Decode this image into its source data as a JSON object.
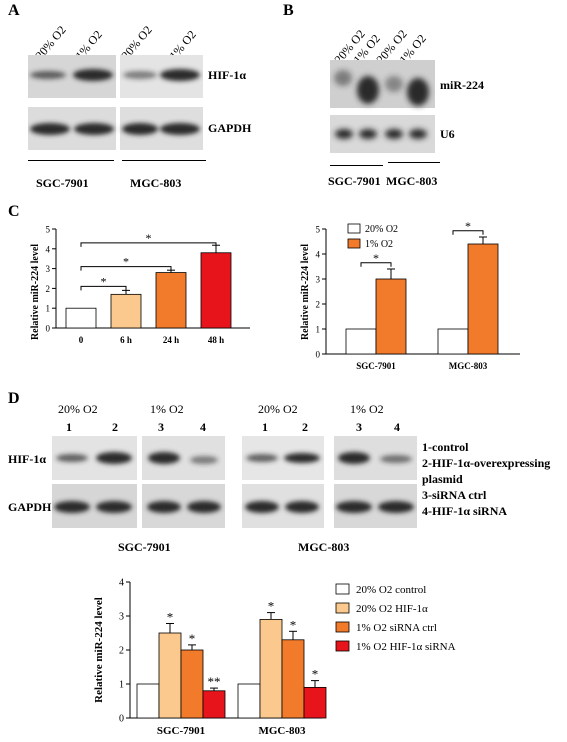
{
  "panels": {
    "A": "A",
    "B": "B",
    "C": "C",
    "D": "D"
  },
  "panelA": {
    "lanes": [
      "20% O2",
      "1% O2",
      "20% O2",
      "1% O2"
    ],
    "rows": [
      "HIF-1α",
      "GAPDH"
    ],
    "cells": [
      "SGC-7901",
      "MGC-803"
    ]
  },
  "panelB": {
    "lanes": [
      "20% O2",
      "1% O2",
      "20% O2",
      "1% O2"
    ],
    "rows": [
      "miR-224",
      "U6"
    ],
    "cells": [
      "SGC-7901",
      "MGC-803"
    ]
  },
  "panelD_blot": {
    "groups": [
      "20% O2",
      "1% O2",
      "20% O2",
      "1% O2"
    ],
    "lane_numbers": [
      "1",
      "2",
      "3",
      "4",
      "1",
      "2",
      "3",
      "4"
    ],
    "rows": [
      "HIF-1α",
      "GAPDH"
    ],
    "legend": [
      "1-control",
      "2-HIF-1α-overexpressing",
      "plasmid",
      "3-siRNA ctrl",
      "4-HIF-1α siRNA"
    ],
    "cells": [
      "SGC-7901",
      "MGC-803"
    ]
  },
  "chart_data": [
    {
      "type": "bar",
      "ylabel": "Relative miR-224 level",
      "ylim": [
        0,
        5
      ],
      "yticks": [
        "0",
        "1",
        "2",
        "3",
        "4",
        "5"
      ],
      "categories": [
        "0",
        "6 h",
        "24 h",
        "48 h"
      ],
      "values": [
        1.0,
        1.7,
        2.8,
        3.8
      ],
      "errors": [
        0,
        0.2,
        0.12,
        0.38
      ],
      "colors": [
        "#ffffff",
        "#fbc98e",
        "#f27a2b",
        "#e8141c"
      ],
      "sig": [
        "*",
        "*",
        "*"
      ]
    },
    {
      "type": "bar",
      "ylabel": "Relative miR-224 level",
      "ylim": [
        0,
        5
      ],
      "yticks": [
        "0",
        "1",
        "2",
        "3",
        "4",
        "5"
      ],
      "categories": [
        "SGC-7901",
        "MGC-803"
      ],
      "series": [
        {
          "name": "20% O2",
          "values": [
            1.0,
            1.0
          ],
          "errors": [
            0,
            0
          ],
          "color": "#ffffff"
        },
        {
          "name": "1% O2",
          "values": [
            3.0,
            4.4
          ],
          "errors": [
            0.4,
            0.28
          ],
          "color": "#f27a2b"
        }
      ],
      "sig": [
        "*",
        "*"
      ],
      "legend_position": "top-left"
    },
    {
      "type": "bar",
      "ylabel": "Relative miR-224 level",
      "ylim": [
        0,
        4
      ],
      "yticks": [
        "0",
        "1",
        "2",
        "3",
        "4"
      ],
      "categories": [
        "SGC-7901",
        "MGC-803"
      ],
      "series": [
        {
          "name": "20% O2 control",
          "values": [
            1.0,
            1.0
          ],
          "errors": [
            0,
            0
          ],
          "color": "#ffffff",
          "sig": [
            "",
            ""
          ]
        },
        {
          "name": "20% O2 HIF-1α",
          "values": [
            2.5,
            2.9
          ],
          "errors": [
            0.28,
            0.2
          ],
          "color": "#fbc98e",
          "sig": [
            "*",
            "*"
          ]
        },
        {
          "name": "1% O2 siRNA ctrl",
          "values": [
            2.0,
            2.3
          ],
          "errors": [
            0.15,
            0.25
          ],
          "color": "#f27a2b",
          "sig": [
            "*",
            "*"
          ]
        },
        {
          "name": "1% O2 HIF-1α siRNA",
          "values": [
            0.8,
            0.9
          ],
          "errors": [
            0.08,
            0.2
          ],
          "color": "#e8141c",
          "sig": [
            "**",
            "*"
          ]
        }
      ],
      "legend_position": "right"
    }
  ]
}
